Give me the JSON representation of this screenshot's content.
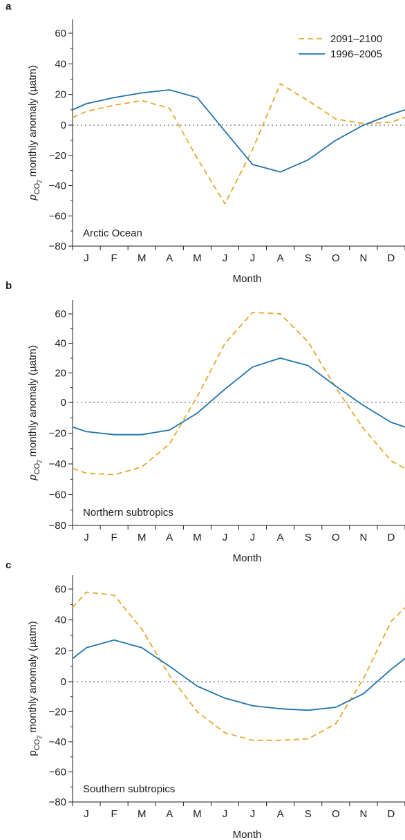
{
  "chart_data": [
    {
      "type": "line",
      "panel_label": "a",
      "region": "Arctic Ocean",
      "xlabel": "Month",
      "ylabel": {
        "prefix": "p",
        "sub": "CO",
        "subsub": "2",
        "suffix": " monthly anomaly (µatm)",
        "style": "italic-subscript"
      },
      "categories": [
        "J",
        "F",
        "M",
        "A",
        "M",
        "J",
        "J",
        "A",
        "S",
        "O",
        "N",
        "D"
      ],
      "ylim": [
        -80,
        70
      ],
      "yticks": [
        -80,
        -60,
        -40,
        -20,
        0,
        20,
        40,
        60
      ],
      "zero_line": true,
      "legend": {
        "show": true,
        "placement": "top-right"
      },
      "series": [
        {
          "name": "2091–2100",
          "style": "dashed",
          "color": "#e8a628",
          "edge_start": 5,
          "edge_end": 5,
          "values": [
            9,
            13,
            16,
            11,
            -22,
            -52,
            -16,
            27,
            16,
            4,
            1,
            2
          ]
        },
        {
          "name": "1996–2005",
          "style": "solid",
          "color": "#1f73ad",
          "edge_start": 10,
          "edge_end": 10,
          "values": [
            14,
            18,
            21,
            23,
            18,
            -4,
            -26,
            -31,
            -23,
            -10,
            0,
            7
          ]
        }
      ]
    },
    {
      "type": "line",
      "panel_label": "b",
      "region": "Northern subtropics",
      "xlabel": "Month",
      "ylabel": {
        "prefix": "p",
        "sub": "CO",
        "subsub": "2",
        "suffix": " monthly anomaly (µatm)",
        "style": "italic-subscript"
      },
      "categories": [
        "J",
        "F",
        "M",
        "A",
        "M",
        "J",
        "J",
        "A",
        "S",
        "O",
        "N",
        "D"
      ],
      "ylim": [
        -80,
        70
      ],
      "yticks": [
        -80,
        -60,
        -40,
        -20,
        0,
        20,
        40,
        60
      ],
      "zero_line": true,
      "legend": {
        "show": false
      },
      "series": [
        {
          "name": "2091–2100",
          "style": "dashed",
          "color": "#e8a628",
          "edge_start": -43,
          "edge_end": -43,
          "values": [
            -46,
            -47,
            -42,
            -27,
            4,
            40,
            61,
            60,
            41,
            10,
            -17,
            -38
          ]
        },
        {
          "name": "1996–2005",
          "style": "solid",
          "color": "#1f73ad",
          "edge_start": -16,
          "edge_end": -16,
          "values": [
            -19,
            -21,
            -21,
            -18,
            -7,
            9,
            24,
            30,
            25,
            11,
            -2,
            -13
          ]
        }
      ]
    },
    {
      "type": "line",
      "panel_label": "c",
      "region": "Southern subtropics",
      "xlabel": "Month",
      "ylabel": {
        "prefix": "p",
        "sub": "CO",
        "subsub": "2",
        "suffix": " monthly anomaly (µatm)",
        "style": "plain-subscript"
      },
      "categories": [
        "J",
        "F",
        "M",
        "A",
        "M",
        "J",
        "J",
        "A",
        "S",
        "O",
        "N",
        "D"
      ],
      "ylim": [
        -80,
        70
      ],
      "yticks": [
        -80,
        -60,
        -40,
        -20,
        0,
        20,
        40,
        60
      ],
      "zero_line": true,
      "legend": {
        "show": false
      },
      "series": [
        {
          "name": "2091–2100",
          "style": "dashed",
          "color": "#e8a628",
          "edge_start": 48,
          "edge_end": 48,
          "values": [
            58,
            56,
            34,
            4,
            -20,
            -34,
            -39,
            -39,
            -38,
            -28,
            2,
            39
          ]
        },
        {
          "name": "1996–2005",
          "style": "solid",
          "color": "#1f73ad",
          "edge_start": 15,
          "edge_end": 15,
          "values": [
            22,
            27,
            22,
            10,
            -3,
            -11,
            -16,
            -18,
            -19,
            -17,
            -8,
            8
          ]
        }
      ]
    }
  ]
}
